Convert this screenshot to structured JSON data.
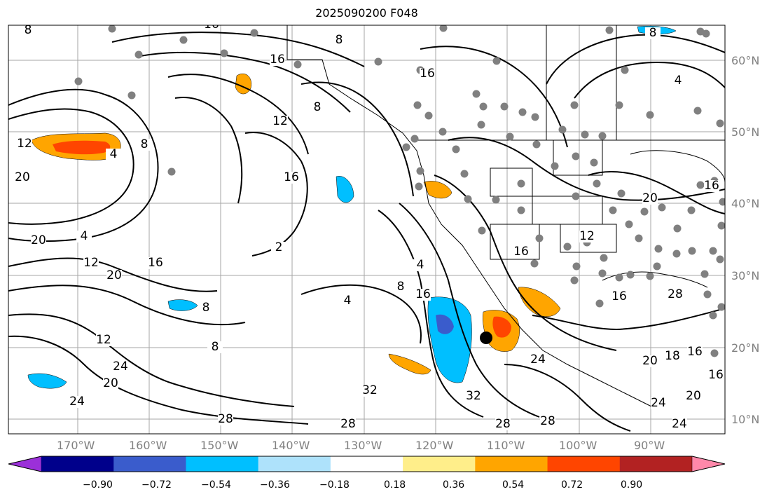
{
  "title": "2025090200 F048",
  "longitude_labels": [
    "170°W",
    "160°W",
    "150°W",
    "140°W",
    "130°W",
    "120°W",
    "110°W",
    "100°W",
    "90°W"
  ],
  "latitude_labels": [
    "60°N",
    "50°N",
    "40°N",
    "30°N",
    "20°N",
    "10°N"
  ],
  "colorbar": {
    "colors": [
      "#9b30d9",
      "#00008b",
      "#3a5ccc",
      "#00bfff",
      "#aee2fb",
      "#ffffff",
      "#ffee8a",
      "#ffa500",
      "#ff4500",
      "#b22222",
      "#ff88aa"
    ],
    "tick_labels": [
      "−0.90",
      "−0.72",
      "−0.54",
      "−0.36",
      "−0.18",
      "0.18",
      "0.36",
      "0.54",
      "0.72",
      "0.90"
    ]
  },
  "contour_labels": [
    "8",
    "16",
    "16",
    "8",
    "16",
    "4",
    "8",
    "12",
    "8",
    "12",
    "20",
    "16",
    "4",
    "20",
    "12",
    "4",
    "20",
    "16",
    "8",
    "16",
    "4",
    "8",
    "16",
    "12",
    "20",
    "16",
    "28",
    "20",
    "16",
    "12",
    "24",
    "20",
    "24",
    "28",
    "28",
    "32",
    "32",
    "28",
    "28",
    "24",
    "18",
    "16",
    "24",
    "24",
    "20",
    "16",
    "8",
    "2",
    "4",
    "8"
  ],
  "colors": {
    "contour": "#000000",
    "grid": "#808080",
    "station": "#808080",
    "marker": "#000000"
  },
  "marker": "storm-center-dot"
}
